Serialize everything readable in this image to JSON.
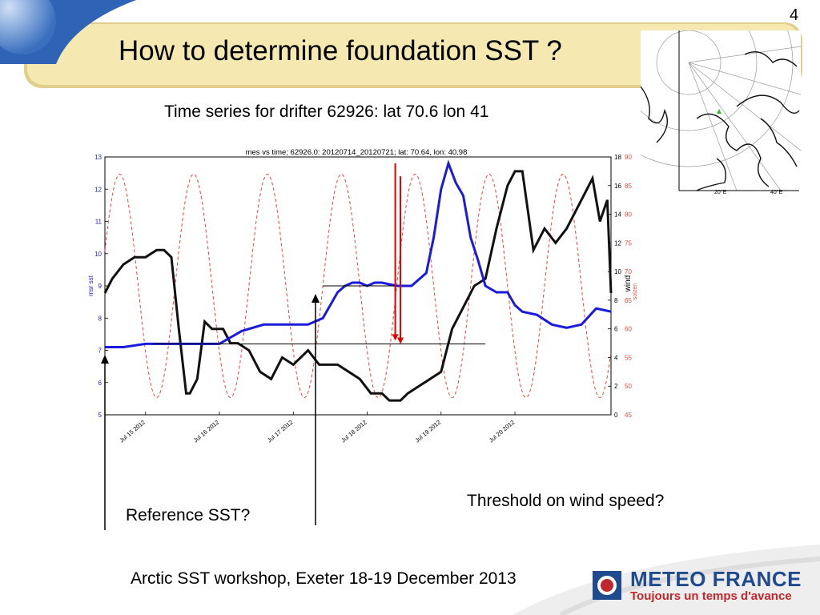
{
  "slide": {
    "page_number": "4",
    "title": "How to determine foundation SST ?",
    "subtitle": "Time series  for drifter 62926:  lat 70.6 lon 41",
    "annotation_reference": "Reference SST?",
    "annotation_wind": "Threshold on wind speed?",
    "footer": "Arctic SST workshop, Exeter 18-19 December 2013",
    "logo_title": "METEO FRANCE",
    "logo_tagline": "Toujours un temps d'avance"
  },
  "map_labels": [
    "20°E",
    "40°E"
  ],
  "colors": {
    "sst": "#1a1adc",
    "wind": "#111111",
    "solar": "#e84a3a",
    "title_band": "#f5e8b0",
    "logo_blue": "#1f4b8e",
    "logo_red": "#c0282d",
    "arrow_red": "#e00000"
  },
  "chart_data": {
    "type": "line",
    "title": "mes vs time; 62926.0:  20120714_20120721; lat: 70.64, lon: 40.98",
    "ylabel_left": "msr sst",
    "ylabel_right": "wind",
    "ylabel_right2": "solzen",
    "xticks": [
      "Jul 15 2012",
      "Jul 16 2012",
      "Jul 17 2012",
      "Jul 18 2012",
      "Jul 19 2012",
      "Jul 20 2012"
    ],
    "yticks_left": [
      "5",
      "6",
      "7",
      "8",
      "9",
      "10",
      "11",
      "12",
      "13"
    ],
    "yticks_right": [
      "0",
      "2",
      "4",
      "6",
      "8",
      "10",
      "12",
      "14",
      "16",
      "18"
    ],
    "yticks_right2": [
      "45",
      "50",
      "55",
      "60",
      "65",
      "70",
      "75",
      "80",
      "85",
      "90"
    ],
    "xlim": [
      14.45,
      21.3
    ],
    "ylim_left": [
      5,
      13
    ],
    "ylim_right": [
      0,
      18
    ],
    "ylim_right2": [
      45,
      90
    ],
    "grid": false,
    "series": [
      {
        "name": "msr sst",
        "axis": "left",
        "x": [
          14.45,
          14.7,
          15.0,
          15.3,
          15.6,
          16.0,
          16.3,
          16.6,
          16.8,
          17.0,
          17.2,
          17.4,
          17.6,
          17.7,
          17.8,
          17.9,
          18.0,
          18.1,
          18.2,
          18.4,
          18.6,
          18.8,
          18.9,
          19.0,
          19.1,
          19.2,
          19.3,
          19.4,
          19.5,
          19.6,
          19.75,
          19.9,
          20.0,
          20.1,
          20.3,
          20.5,
          20.7,
          20.9,
          21.1,
          21.3
        ],
        "y": [
          7.1,
          7.1,
          7.2,
          7.2,
          7.2,
          7.2,
          7.6,
          7.8,
          7.8,
          7.8,
          7.8,
          8.0,
          8.8,
          9.0,
          9.1,
          9.1,
          9.0,
          9.1,
          9.1,
          9.0,
          9.0,
          9.4,
          10.5,
          12.0,
          12.8,
          12.2,
          11.8,
          10.5,
          9.8,
          9.0,
          8.8,
          8.8,
          8.4,
          8.2,
          8.1,
          7.8,
          7.7,
          7.8,
          8.3,
          8.2
        ]
      },
      {
        "name": "wind",
        "axis": "right",
        "x": [
          14.45,
          14.55,
          14.7,
          14.85,
          15.0,
          15.15,
          15.25,
          15.35,
          15.45,
          15.55,
          15.6,
          15.7,
          15.8,
          15.9,
          16.05,
          16.15,
          16.25,
          16.4,
          16.55,
          16.7,
          16.85,
          17.0,
          17.1,
          17.2,
          17.35,
          17.45,
          17.6,
          17.75,
          17.9,
          18.05,
          18.2,
          18.3,
          18.45,
          18.55,
          18.7,
          18.85,
          19.0,
          19.15,
          19.3,
          19.45,
          19.6,
          19.75,
          19.9,
          20.0,
          20.1,
          20.25,
          20.4,
          20.55,
          20.7,
          20.85,
          20.95,
          21.05,
          21.15,
          21.25,
          21.3
        ],
        "y": [
          8.5,
          9.5,
          10.5,
          11.0,
          11.0,
          11.5,
          11.5,
          11.0,
          6.0,
          1.5,
          1.5,
          2.5,
          6.5,
          6.0,
          6.0,
          5.0,
          5.0,
          4.5,
          3.0,
          2.5,
          4.0,
          3.5,
          4.0,
          4.5,
          3.5,
          3.5,
          3.5,
          3.0,
          2.5,
          1.5,
          1.5,
          1.0,
          1.0,
          1.5,
          2.0,
          2.5,
          3.0,
          6.0,
          7.5,
          9.0,
          9.5,
          13.0,
          16.0,
          17.0,
          17.0,
          11.5,
          13.0,
          12.0,
          13.0,
          14.5,
          15.5,
          16.5,
          13.5,
          15.0,
          8.5
        ]
      },
      {
        "name": "solzen",
        "axis": "right2",
        "period_days": 1.0,
        "min_value": 48,
        "max_value": 87,
        "peak_at": [
          14.65,
          15.65,
          16.65,
          17.65,
          18.65,
          19.65,
          20.65
        ]
      }
    ],
    "hlines": [
      {
        "axis": "left",
        "y": 9.0,
        "x": [
          17.4,
          18.38
        ],
        "color": "black"
      },
      {
        "axis": "left",
        "y": 7.2,
        "x": [
          15.1,
          19.6
        ],
        "color": "black"
      }
    ],
    "arrows": [
      {
        "axis": "left",
        "x": 18.38,
        "from": 12.8,
        "to": 7.3,
        "color": "red"
      },
      {
        "axis": "left",
        "x": 18.45,
        "from": 12.4,
        "to": 7.2,
        "color": "red"
      }
    ]
  }
}
